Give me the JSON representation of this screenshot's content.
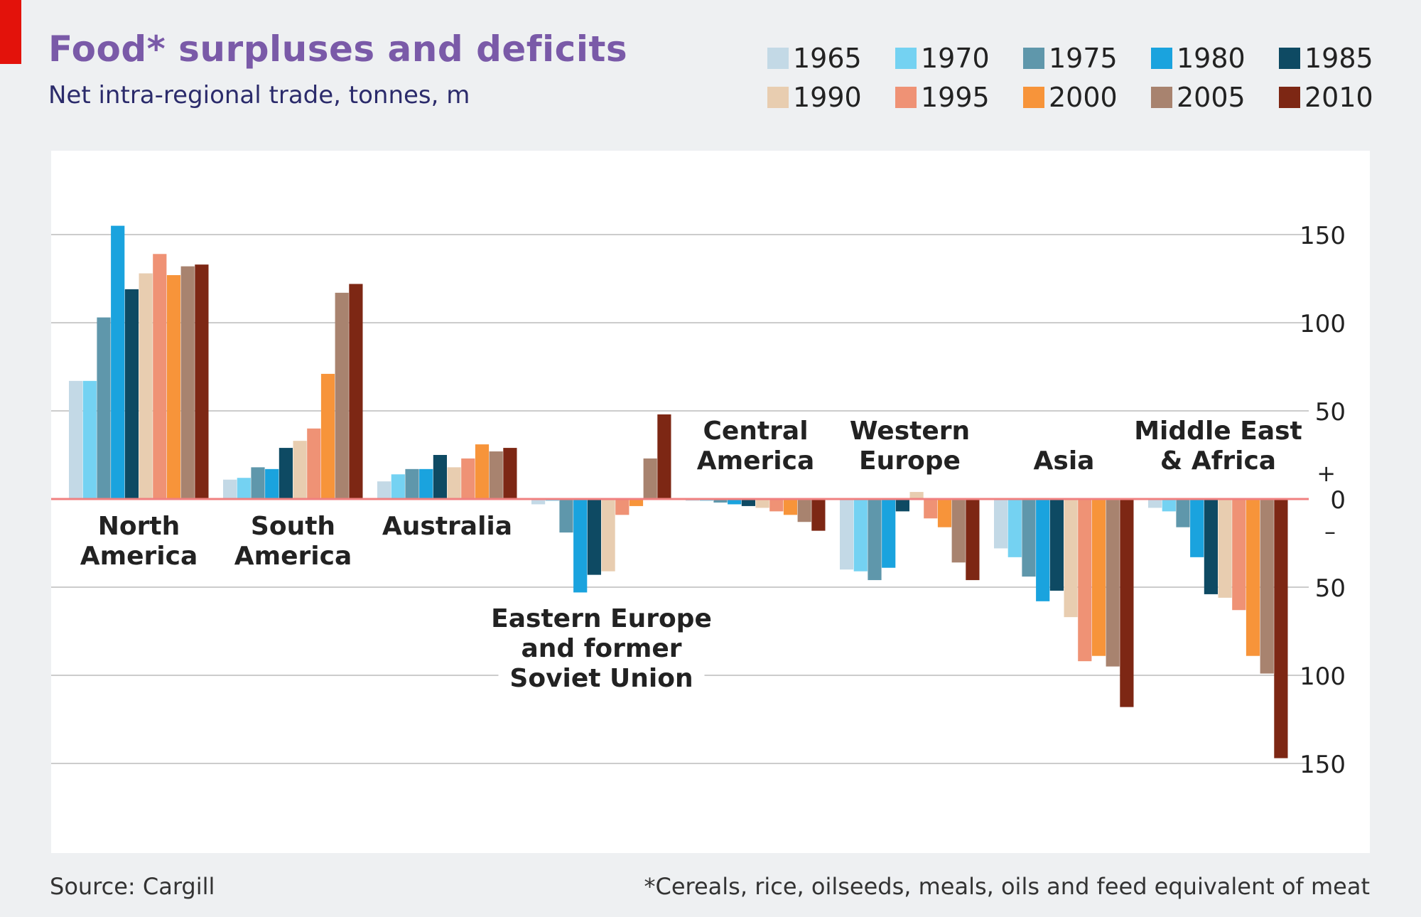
{
  "header": {
    "title": "Food* surpluses and deficits",
    "subtitle": "Net intra-regional trade, tonnes, m"
  },
  "footer": {
    "source": "Source: Cargill",
    "footnote": "*Cereals, rice, oilseeds, meals, oils and feed equivalent of meat"
  },
  "colors": {
    "1965": "#c3d9e6",
    "1970": "#74d2f2",
    "1975": "#5f97ab",
    "1980": "#1aa3de",
    "1985": "#0e4a63",
    "1990": "#e8cdb0",
    "1995": "#ef9275",
    "2000": "#f7943a",
    "2005": "#a8836f",
    "2010": "#7d2714",
    "zero_line": "#f08080",
    "grid": "#cccccc"
  },
  "chart_data": {
    "type": "bar",
    "title": "Food* surpluses and deficits",
    "subtitle": "Net intra-regional trade, tonnes, m",
    "xlabel": "",
    "ylabel": "",
    "ylim": [
      -200,
      200
    ],
    "y_ticks": [
      {
        "value": 150,
        "label": "150"
      },
      {
        "value": 100,
        "label": "100"
      },
      {
        "value": 50,
        "label": "50"
      },
      {
        "value": 0,
        "label": "0"
      },
      {
        "value": -50,
        "label": "50"
      },
      {
        "value": -100,
        "label": "100"
      },
      {
        "value": -150,
        "label": "150"
      }
    ],
    "sign_markers": {
      "plus": "+",
      "minus": "–"
    },
    "grid": true,
    "legend_position": "top-right",
    "categories": [
      {
        "name": "North America",
        "lines": [
          "North",
          "America"
        ],
        "label_position": "below"
      },
      {
        "name": "South America",
        "lines": [
          "South",
          "America"
        ],
        "label_position": "below"
      },
      {
        "name": "Australia",
        "lines": [
          "Australia"
        ],
        "label_position": "below"
      },
      {
        "name": "Eastern Europe and former Soviet Union",
        "lines": [
          "Eastern Europe",
          "and former",
          "Soviet Union"
        ],
        "label_position": "below"
      },
      {
        "name": "Central America",
        "lines": [
          "Central",
          "America"
        ],
        "label_position": "above"
      },
      {
        "name": "Western Europe",
        "lines": [
          "Western",
          "Europe"
        ],
        "label_position": "above"
      },
      {
        "name": "Asia",
        "lines": [
          "Asia"
        ],
        "label_position": "above"
      },
      {
        "name": "Middle East & Africa",
        "lines": [
          "Middle East",
          "& Africa"
        ],
        "label_position": "above"
      }
    ],
    "series": [
      {
        "name": "1965",
        "values": [
          67,
          11,
          10,
          -3,
          -1,
          -40,
          -28,
          -5
        ]
      },
      {
        "name": "1970",
        "values": [
          67,
          12,
          14,
          -1,
          -1,
          -41,
          -33,
          -7
        ]
      },
      {
        "name": "1975",
        "values": [
          103,
          18,
          17,
          -19,
          -2,
          -46,
          -44,
          -16
        ]
      },
      {
        "name": "1980",
        "values": [
          155,
          17,
          17,
          -53,
          -3,
          -39,
          -58,
          -33
        ]
      },
      {
        "name": "1985",
        "values": [
          119,
          29,
          25,
          -43,
          -4,
          -7,
          -52,
          -54
        ]
      },
      {
        "name": "1990",
        "values": [
          128,
          33,
          18,
          -41,
          -5,
          4,
          -67,
          -56
        ]
      },
      {
        "name": "1995",
        "values": [
          139,
          40,
          23,
          -9,
          -7,
          -11,
          -92,
          -63
        ]
      },
      {
        "name": "2000",
        "values": [
          127,
          71,
          31,
          -4,
          -9,
          -16,
          -89,
          -89
        ]
      },
      {
        "name": "2005",
        "values": [
          132,
          117,
          27,
          23,
          -13,
          -36,
          -95,
          -99
        ]
      },
      {
        "name": "2010",
        "values": [
          133,
          122,
          29,
          48,
          -18,
          -46,
          -118,
          -147
        ]
      }
    ]
  }
}
